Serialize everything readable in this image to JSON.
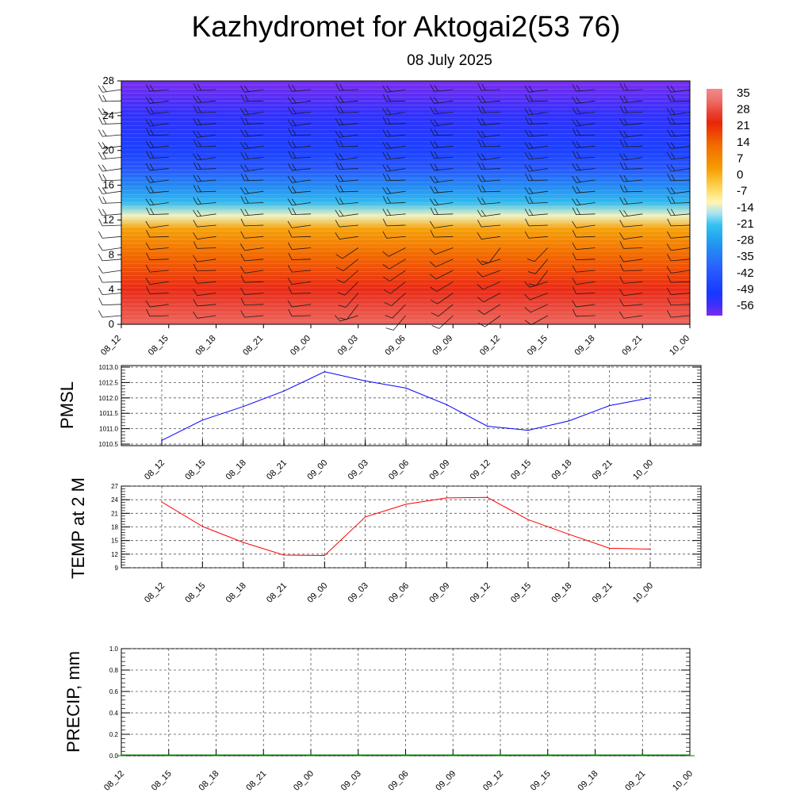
{
  "title": "Kazhydromet for Aktogai2(53 76)",
  "subtitle": "08 July 2025",
  "chart_data": [
    {
      "type": "heatmap",
      "x_ticks": [
        "08_12",
        "08_15",
        "08_18",
        "08_21",
        "09_00",
        "09_03",
        "09_06",
        "09_09",
        "09_12",
        "09_15",
        "09_18",
        "09_21",
        "10_00"
      ],
      "y_ticks": [
        "0",
        "4",
        "8",
        "12",
        "16",
        "20",
        "24",
        "28"
      ],
      "ylim": [
        0,
        28
      ],
      "colorbar_labels": [
        "35",
        "28",
        "21",
        "14",
        "7",
        "0",
        "-7",
        "-14",
        "-21",
        "-28",
        "-35",
        "-42",
        "-49",
        "-56"
      ],
      "temperature_profile": [
        {
          "level": 0,
          "value": 32
        },
        {
          "level": 4,
          "value": 25
        },
        {
          "level": 8,
          "value": 14
        },
        {
          "level": 11,
          "value": 3
        },
        {
          "level": 12.5,
          "value": -12
        },
        {
          "level": 14,
          "value": -22
        },
        {
          "level": 16,
          "value": -32
        },
        {
          "level": 18,
          "value": -42
        },
        {
          "level": 20,
          "value": -48
        },
        {
          "level": 24,
          "value": -54
        },
        {
          "level": 28,
          "value": -60
        }
      ],
      "colors": {
        "hot": "#e8200a",
        "warm": "#f59a00",
        "mild": "#fff6b0",
        "cool": "#36c6f0",
        "cold": "#1432ff",
        "coldest": "#7a2cf0"
      }
    },
    {
      "type": "line",
      "ylabel": "PMSL",
      "categories": [
        "08_12",
        "08_15",
        "08_18",
        "08_21",
        "09_00",
        "09_03",
        "09_06",
        "09_09",
        "09_12",
        "09_15",
        "09_18",
        "09_21",
        "10_00"
      ],
      "y_ticks": [
        "1010.5",
        "1011.0",
        "1011.5",
        "1012.0",
        "1012.5",
        "1013.0"
      ],
      "ylim": [
        1010.45,
        1013.05
      ],
      "series": [
        {
          "values": [
            1010.62,
            1011.28,
            1011.72,
            1012.22,
            1012.85,
            1012.55,
            1012.32,
            1011.78,
            1011.08,
            1010.95,
            1011.25,
            1011.75,
            1012.0
          ]
        }
      ],
      "color": "#0000ff",
      "grid": true
    },
    {
      "type": "line",
      "ylabel": "TEMP at 2 M",
      "categories": [
        "08_12",
        "08_15",
        "08_18",
        "08_21",
        "09_00",
        "09_03",
        "09_06",
        "09_09",
        "09_12",
        "09_15",
        "09_18",
        "09_21",
        "10_00"
      ],
      "y_ticks": [
        "9",
        "12",
        "15",
        "18",
        "21",
        "24",
        "27"
      ],
      "ylim": [
        9,
        27
      ],
      "series": [
        {
          "values": [
            23.5,
            18.1,
            14.6,
            11.8,
            11.7,
            20.2,
            23.0,
            24.4,
            24.5,
            19.6,
            16.4,
            13.3,
            13.1
          ]
        }
      ],
      "color": "#ff0000",
      "grid": true
    },
    {
      "type": "bar",
      "ylabel": "PRECIP, mm",
      "categories": [
        "08_12",
        "08_15",
        "08_18",
        "08_21",
        "09_00",
        "09_03",
        "09_06",
        "09_09",
        "09_12",
        "09_15",
        "09_18",
        "09_21",
        "10_00"
      ],
      "y_ticks": [
        "0.0",
        "0.2",
        "0.4",
        "0.6",
        "0.8",
        "1.0"
      ],
      "ylim": [
        0,
        1
      ],
      "values": [
        0,
        0,
        0,
        0,
        0,
        0,
        0,
        0,
        0,
        0,
        0,
        0,
        0
      ],
      "color": "#008000",
      "grid": true
    }
  ]
}
